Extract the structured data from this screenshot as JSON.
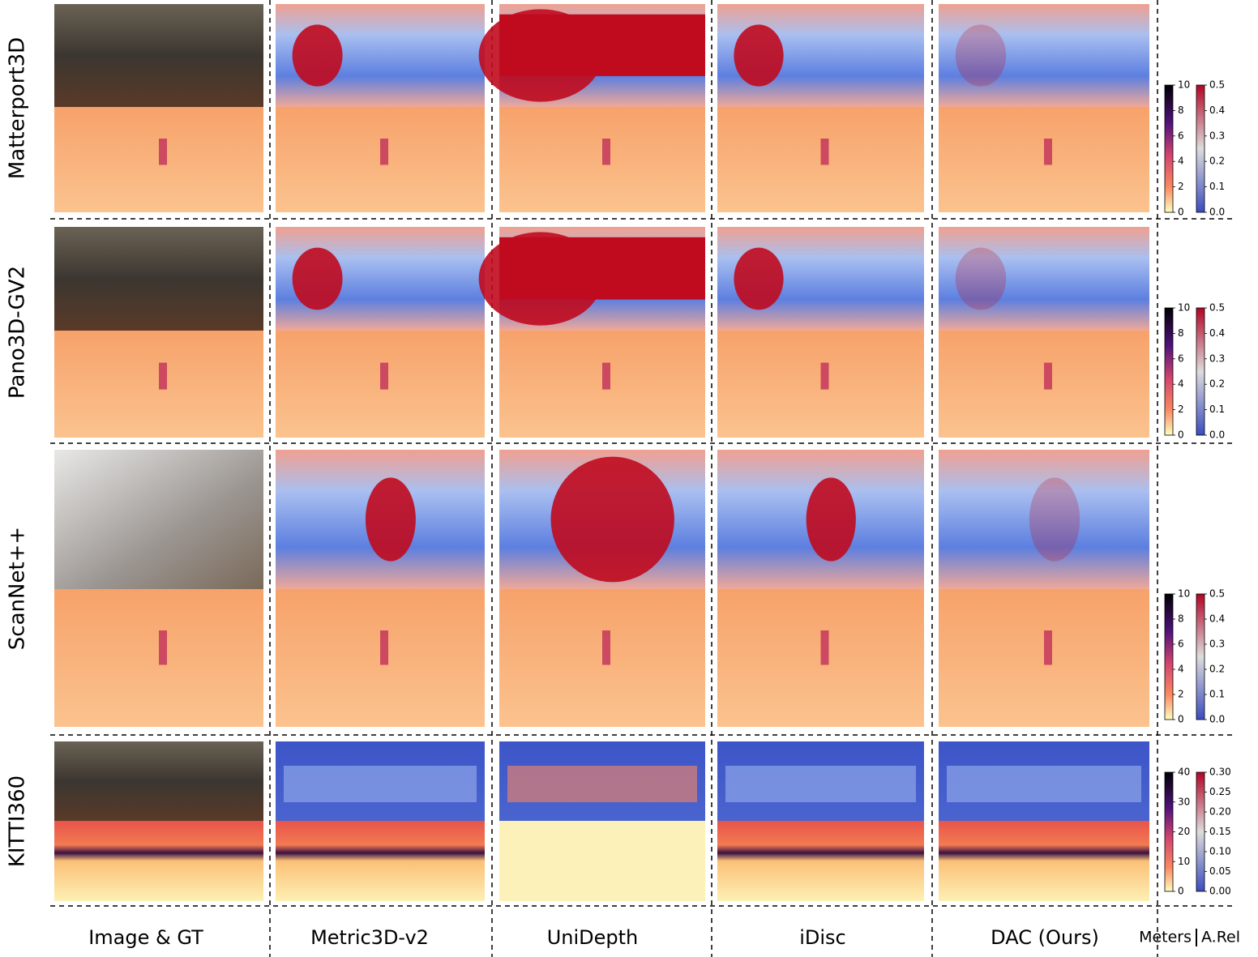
{
  "rows": [
    "Matterport3D",
    "Pano3D-GV2",
    "ScanNet++",
    "KITTI360"
  ],
  "columns": [
    "Image & GT",
    "Metric3D-v2",
    "UniDepth",
    "iDisc",
    "DAC (Ours)"
  ],
  "legend": {
    "left": "Meters",
    "right": "A.Rel"
  },
  "colorbars": [
    {
      "meters": [
        "10",
        "8",
        "6",
        "4",
        "2",
        "0"
      ],
      "arel": [
        "0.5",
        "0.4",
        "0.3",
        "0.2",
        "0.1",
        "0.0"
      ]
    },
    {
      "meters": [
        "10",
        "8",
        "6",
        "4",
        "2",
        "0"
      ],
      "arel": [
        "0.5",
        "0.4",
        "0.3",
        "0.2",
        "0.1",
        "0.0"
      ]
    },
    {
      "meters": [
        "10",
        "8",
        "6",
        "4",
        "2",
        "0"
      ],
      "arel": [
        "0.5",
        "0.4",
        "0.3",
        "0.2",
        "0.1",
        "0.0"
      ]
    },
    {
      "meters": [
        "40",
        "30",
        "20",
        "10",
        "0"
      ],
      "arel": [
        "0.30",
        "0.25",
        "0.20",
        "0.15",
        "0.10",
        "0.05",
        "0.00"
      ]
    }
  ]
}
